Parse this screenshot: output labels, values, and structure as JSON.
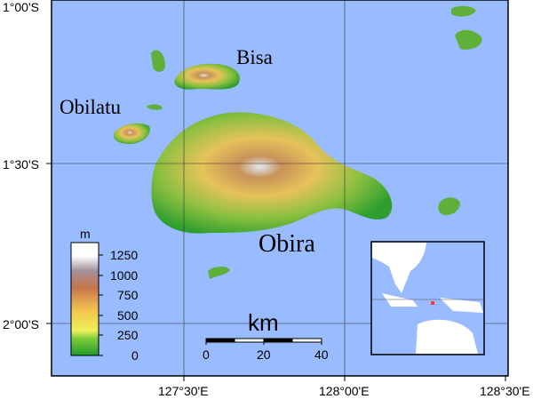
{
  "map": {
    "colors": {
      "sea": "#99bbff",
      "land_low": "#2e9e2e",
      "land_mid": "#f0c24a",
      "land_high": "#b5705a",
      "peak": "#ffffff",
      "inset_land": "#ffffff",
      "marker": "#ff3333"
    },
    "islands": [
      {
        "name": "Bisa"
      },
      {
        "name": "Obilatu"
      },
      {
        "name": "Obira"
      }
    ],
    "lat_labels": [
      "1°00'S",
      "1°30'S",
      "2°00'S"
    ],
    "lon_labels": [
      "127°30'E",
      "128°00'E",
      "128°30'E"
    ],
    "legend": {
      "unit": "m",
      "ticks": [
        "1250",
        "1000",
        "750",
        "500",
        "250",
        "0"
      ]
    },
    "scale_bar": {
      "unit": "km",
      "ticks": [
        "0",
        "20",
        "40"
      ]
    }
  }
}
